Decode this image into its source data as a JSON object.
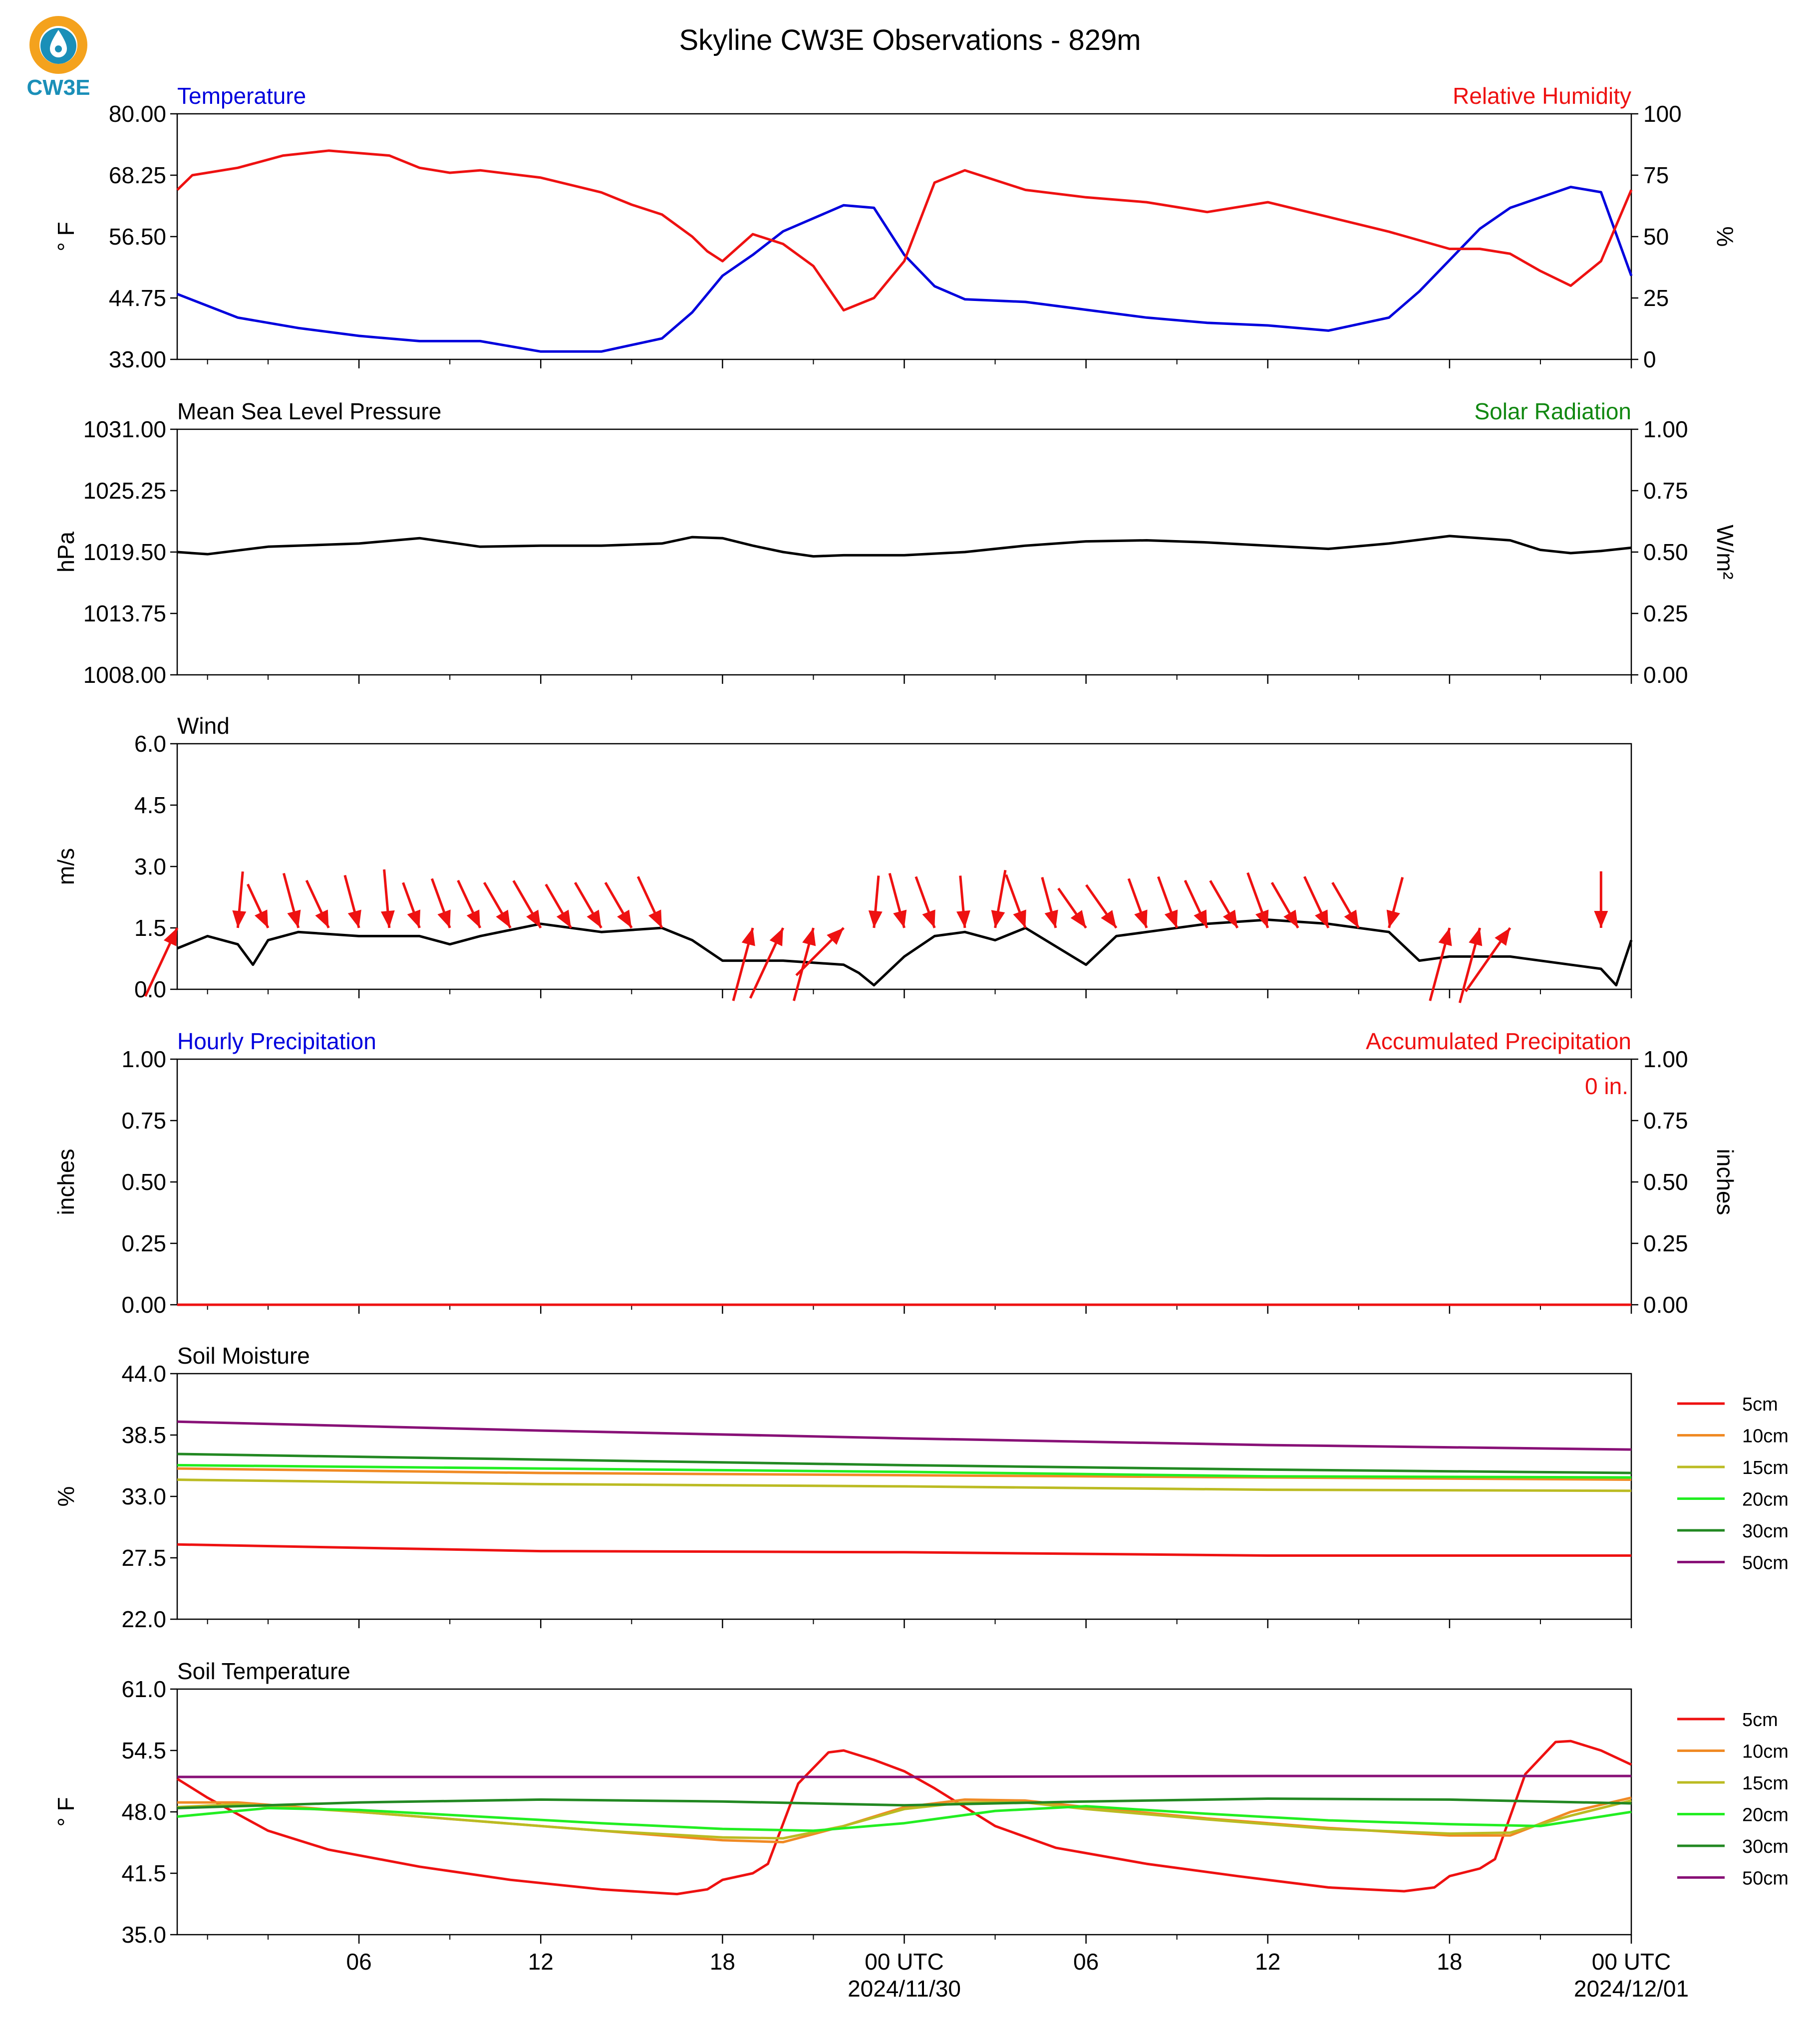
{
  "title": "Skyline CW3E Observations - 829m",
  "logo": {
    "text": "CW3E",
    "colors": {
      "orange": "#f4a21d",
      "blue": "#1a8fb8"
    }
  },
  "x_axis": {
    "ticks": [
      "06",
      "12",
      "18",
      "00 UTC",
      "06",
      "12",
      "18",
      "00 UTC"
    ],
    "dates": [
      "2024/11/30",
      "2024/12/01"
    ]
  },
  "colors": {
    "temperature": "#0000dd",
    "humidity": "#ee1111",
    "pressure": "#000000",
    "solar": "#118811",
    "wind": "#000000",
    "wind_arrow": "#ee1111",
    "hourly_precip": "#0000dd",
    "accum_precip": "#ee1111"
  },
  "chart_data": [
    {
      "type": "line",
      "title_left": "Temperature",
      "title_right": "Relative Humidity",
      "ylabel": "° F",
      "ylabel_right": "%",
      "ylim": [
        33,
        80
      ],
      "ylim_right": [
        0,
        100
      ],
      "yticks": [
        "80.00",
        "68.25",
        "56.50",
        "44.75",
        "33.00"
      ],
      "yticks_right": [
        "100",
        "75",
        "50",
        "25",
        "0"
      ],
      "series": [
        {
          "name": "Temperature",
          "axis": "left",
          "color": "#0000dd",
          "x": [
            0,
            2,
            4,
            6,
            8,
            10,
            12,
            14,
            16,
            17,
            18,
            19,
            20,
            22,
            23,
            24,
            25,
            26,
            28,
            30,
            32,
            34,
            36,
            38,
            40,
            41,
            42,
            43,
            44,
            45,
            46,
            47,
            48
          ],
          "y": [
            45.5,
            41,
            39,
            37.5,
            36.5,
            36.5,
            34.5,
            34.5,
            37,
            42,
            49,
            53,
            57.5,
            62.5,
            62,
            53,
            47,
            44.5,
            44,
            42.5,
            41,
            40,
            39.5,
            38.5,
            41,
            46,
            52,
            58,
            62,
            64,
            66,
            65,
            49
          ]
        },
        {
          "name": "Relative Humidity",
          "axis": "right",
          "color": "#ee1111",
          "x": [
            0,
            0.5,
            2,
            3.5,
            5,
            7,
            8,
            9,
            10,
            12,
            14,
            15,
            16,
            17,
            17.5,
            18,
            19,
            20,
            21,
            22,
            23,
            24,
            25,
            26,
            28,
            30,
            32,
            34,
            36,
            38,
            40,
            42,
            43,
            44,
            45,
            46,
            47,
            48
          ],
          "y": [
            69,
            75,
            78,
            83,
            85,
            83,
            78,
            76,
            77,
            74,
            68,
            63,
            59,
            50,
            44,
            40,
            51,
            47,
            38,
            20,
            25,
            40,
            72,
            77,
            69,
            66,
            64,
            60,
            64,
            58,
            52,
            45,
            45,
            43,
            36,
            30,
            40,
            69
          ]
        }
      ]
    },
    {
      "type": "line",
      "title_left": "Mean Sea Level Pressure",
      "title_right": "Solar Radiation",
      "ylabel": "hPa",
      "ylabel_right": "W/m²",
      "ylim": [
        1008,
        1031
      ],
      "ylim_right": [
        0,
        1
      ],
      "yticks": [
        "1031.00",
        "1025.25",
        "1019.50",
        "1013.75",
        "1008.00"
      ],
      "yticks_right": [
        "1.00",
        "0.75",
        "0.50",
        "0.25",
        "0.00"
      ],
      "series": [
        {
          "name": "Mean Sea Level Pressure",
          "axis": "left",
          "color": "#000000",
          "x": [
            0,
            1,
            3,
            6,
            8,
            10,
            12,
            14,
            16,
            17,
            18,
            19,
            20,
            21,
            22,
            24,
            26,
            28,
            30,
            32,
            34,
            36,
            38,
            40,
            42,
            44,
            45,
            46,
            47,
            48
          ],
          "y": [
            1019.5,
            1019.3,
            1020,
            1020.3,
            1020.8,
            1020,
            1020.1,
            1020.1,
            1020.3,
            1020.9,
            1020.8,
            1020.1,
            1019.5,
            1019.1,
            1019.2,
            1019.2,
            1019.5,
            1020.1,
            1020.5,
            1020.6,
            1020.4,
            1020.1,
            1019.8,
            1020.3,
            1021,
            1020.6,
            1019.7,
            1019.4,
            1019.6,
            1019.9
          ]
        }
      ]
    },
    {
      "type": "line",
      "title_left": "Wind",
      "ylabel": "m/s",
      "ylim": [
        0,
        6
      ],
      "yticks": [
        "6.0",
        "4.5",
        "3.0",
        "1.5",
        "0.0"
      ],
      "series": [
        {
          "name": "Wind",
          "axis": "left",
          "color": "#000000",
          "x": [
            0,
            1,
            2,
            2.5,
            3,
            4,
            6,
            8,
            9,
            10,
            12,
            14,
            16,
            17,
            18,
            20,
            22,
            22.5,
            23,
            24,
            25,
            26,
            27,
            28,
            30,
            31,
            32,
            34,
            36,
            38,
            40,
            41,
            42,
            44,
            46,
            47,
            47.5,
            48
          ],
          "y": [
            1.0,
            1.3,
            1.1,
            0.6,
            1.2,
            1.4,
            1.3,
            1.3,
            1.1,
            1.3,
            1.6,
            1.4,
            1.5,
            1.2,
            0.7,
            0.7,
            0.6,
            0.4,
            0.1,
            0.8,
            1.3,
            1.4,
            1.2,
            1.5,
            0.6,
            1.3,
            1.4,
            1.6,
            1.7,
            1.6,
            1.4,
            0.7,
            0.8,
            0.8,
            0.6,
            0.5,
            0.1,
            1.2
          ]
        }
      ],
      "wind_barbs": {
        "x": [
          0,
          2,
          3,
          4,
          5,
          6,
          7,
          8,
          9,
          10,
          11,
          12,
          13,
          14,
          15,
          16,
          19,
          20,
          21,
          22,
          23,
          24,
          25,
          26,
          27,
          28,
          29,
          30,
          31,
          32,
          33,
          34,
          35,
          36,
          37,
          38,
          39,
          40,
          42,
          43,
          44,
          47
        ],
        "speed": [
          3.6,
          2.7,
          2.3,
          2.7,
          2.5,
          2.6,
          2.8,
          2.3,
          2.5,
          2.5,
          2.5,
          2.6,
          2.4,
          2.5,
          2.5,
          2.7,
          3.6,
          3.7,
          3.6,
          3.2,
          2.5,
          2.7,
          2.6,
          2.5,
          2.8,
          2.7,
          2.5,
          2.3,
          2.5,
          2.5,
          2.6,
          2.5,
          2.6,
          2.8,
          2.5,
          2.7,
          2.5,
          2.5,
          3.6,
          3.7,
          3.7,
          2.7
        ],
        "dir_deg": [
          205,
          5,
          335,
          345,
          335,
          345,
          355,
          340,
          340,
          335,
          330,
          330,
          330,
          330,
          330,
          335,
          195,
          205,
          195,
          225,
          5,
          345,
          340,
          355,
          10,
          340,
          345,
          325,
          325,
          340,
          340,
          335,
          330,
          340,
          330,
          335,
          330,
          15,
          195,
          195,
          215,
          0
        ]
      }
    },
    {
      "type": "bar",
      "title_left": "Hourly Precipitation",
      "title_right": "Accumulated Precipitation",
      "annotation": "0 in.",
      "ylabel": "inches",
      "ylabel_right": "inches",
      "ylim": [
        0,
        1
      ],
      "ylim_right": [
        0,
        1
      ],
      "yticks": [
        "1.00",
        "0.75",
        "0.50",
        "0.25",
        "0.00"
      ],
      "yticks_right": [
        "1.00",
        "0.75",
        "0.50",
        "0.25",
        "0.00"
      ],
      "series": [
        {
          "name": "Accumulated Precipitation",
          "axis": "right",
          "color": "#ee1111",
          "x": [
            0,
            48
          ],
          "y": [
            0,
            0
          ]
        }
      ]
    },
    {
      "type": "line",
      "title_left": "Soil Moisture",
      "ylabel": "%",
      "ylim": [
        22,
        44
      ],
      "yticks": [
        "44.0",
        "38.5",
        "33.0",
        "27.5",
        "22.0"
      ],
      "series": [
        {
          "name": "5cm",
          "color": "#ee1111",
          "x": [
            0,
            12,
            24,
            36,
            48
          ],
          "y": [
            28.7,
            28.1,
            28.0,
            27.7,
            27.7
          ]
        },
        {
          "name": "10cm",
          "color": "#f08a24",
          "x": [
            0,
            12,
            24,
            36,
            48
          ],
          "y": [
            35.5,
            35.1,
            34.9,
            34.7,
            34.5
          ]
        },
        {
          "name": "15cm",
          "color": "#bbbb22",
          "x": [
            0,
            12,
            24,
            36,
            48
          ],
          "y": [
            34.5,
            34.1,
            33.9,
            33.6,
            33.5
          ]
        },
        {
          "name": "20cm",
          "color": "#22ee22",
          "x": [
            0,
            12,
            24,
            36,
            48
          ],
          "y": [
            35.8,
            35.5,
            35.2,
            34.8,
            34.7
          ]
        },
        {
          "name": "30cm",
          "color": "#228822",
          "x": [
            0,
            12,
            24,
            36,
            48
          ],
          "y": [
            36.8,
            36.3,
            35.8,
            35.4,
            35.1
          ]
        },
        {
          "name": "50cm",
          "color": "#881177",
          "x": [
            0,
            12,
            24,
            36,
            48
          ],
          "y": [
            39.7,
            38.9,
            38.2,
            37.6,
            37.2
          ]
        }
      ]
    },
    {
      "type": "line",
      "title_left": "Soil Temperature",
      "ylabel": "° F",
      "ylim": [
        35,
        61
      ],
      "yticks": [
        "61.0",
        "54.5",
        "48.0",
        "41.5",
        "35.0"
      ],
      "series": [
        {
          "name": "5cm",
          "color": "#ee1111",
          "x": [
            0,
            1,
            3,
            5,
            8,
            11,
            14,
            16.5,
            17.5,
            18,
            19,
            19.5,
            20.5,
            21.5,
            22,
            23,
            24,
            25,
            27,
            29,
            32,
            35,
            38,
            40.5,
            41.5,
            42,
            43,
            43.5,
            44.5,
            45.5,
            46,
            47,
            48
          ],
          "y": [
            51.5,
            49.5,
            46,
            44,
            42.2,
            40.8,
            39.8,
            39.3,
            39.8,
            40.8,
            41.5,
            42.5,
            51,
            54.3,
            54.5,
            53.5,
            52.3,
            50.5,
            46.5,
            44.2,
            42.5,
            41.2,
            40,
            39.6,
            40,
            41.2,
            42,
            43,
            52,
            55.4,
            55.5,
            54.5,
            53
          ]
        },
        {
          "name": "10cm",
          "color": "#f08a24",
          "x": [
            0,
            2,
            6,
            10,
            14,
            18,
            20,
            22,
            24,
            26,
            28,
            30,
            34,
            38,
            42,
            44,
            46,
            48
          ],
          "y": [
            49,
            49,
            48,
            47,
            46,
            45,
            44.8,
            46.5,
            48.5,
            49.3,
            49.2,
            48.5,
            47.3,
            46.3,
            45.5,
            45.5,
            48,
            49.5
          ]
        },
        {
          "name": "15cm",
          "color": "#bbbb22",
          "x": [
            0,
            2,
            6,
            10,
            14,
            18,
            20,
            22,
            24,
            26,
            28,
            30,
            34,
            38,
            42,
            44,
            46,
            48
          ],
          "y": [
            48.5,
            48.8,
            48,
            47,
            46,
            45.3,
            45.2,
            46.5,
            48.3,
            49,
            49,
            48.3,
            47.2,
            46.2,
            45.7,
            45.8,
            47.6,
            49.2
          ]
        },
        {
          "name": "20cm",
          "color": "#22ee22",
          "x": [
            0,
            3,
            6,
            10,
            14,
            18,
            21,
            24,
            27,
            30,
            34,
            38,
            42,
            45,
            48
          ],
          "y": [
            47.5,
            48.4,
            48.2,
            47.5,
            46.8,
            46.2,
            46,
            46.8,
            48.1,
            48.6,
            47.8,
            47.1,
            46.7,
            46.5,
            48
          ]
        },
        {
          "name": "30cm",
          "color": "#228822",
          "x": [
            0,
            6,
            12,
            18,
            24,
            30,
            36,
            42,
            48
          ],
          "y": [
            48.4,
            49,
            49.3,
            49.1,
            48.7,
            49.1,
            49.4,
            49.3,
            48.9
          ]
        },
        {
          "name": "50cm",
          "color": "#881177",
          "x": [
            0,
            12,
            24,
            36,
            48
          ],
          "y": [
            51.7,
            51.7,
            51.7,
            51.8,
            51.8
          ]
        }
      ]
    }
  ]
}
